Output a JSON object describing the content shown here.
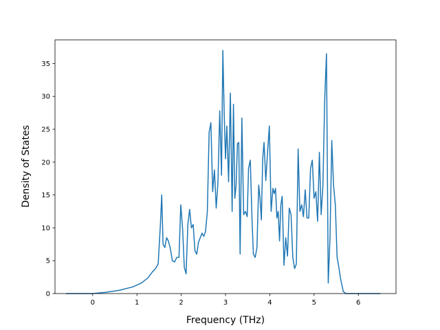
{
  "chart_data": {
    "type": "line",
    "title": "",
    "xlabel": "Frequency (THz)",
    "ylabel": "Density of States",
    "xlim": [
      -0.85,
      6.85
    ],
    "ylim": [
      0,
      38.6
    ],
    "xticks": [
      0,
      1,
      2,
      3,
      4,
      5,
      6
    ],
    "yticks": [
      0,
      5,
      10,
      15,
      20,
      25,
      30,
      35
    ],
    "grid": false,
    "legend": "none",
    "series": [
      {
        "color": "#1f77b4",
        "x": [
          -0.6,
          0.0,
          0.3,
          0.6,
          0.9,
          1.1,
          1.25,
          1.35,
          1.42,
          1.48,
          1.53,
          1.56,
          1.59,
          1.63,
          1.67,
          1.71,
          1.75,
          1.8,
          1.85,
          1.9,
          1.95,
          1.99,
          2.03,
          2.07,
          2.11,
          2.15,
          2.19,
          2.23,
          2.27,
          2.31,
          2.35,
          2.39,
          2.43,
          2.47,
          2.51,
          2.55,
          2.59,
          2.63,
          2.67,
          2.71,
          2.75,
          2.79,
          2.83,
          2.87,
          2.91,
          2.94,
          2.97,
          3.0,
          3.03,
          3.07,
          3.11,
          3.15,
          3.18,
          3.21,
          3.24,
          3.27,
          3.3,
          3.33,
          3.37,
          3.41,
          3.45,
          3.49,
          3.52,
          3.56,
          3.6,
          3.63,
          3.67,
          3.71,
          3.75,
          3.78,
          3.81,
          3.84,
          3.87,
          3.91,
          3.95,
          3.99,
          4.03,
          4.07,
          4.1,
          4.13,
          4.16,
          4.19,
          4.22,
          4.25,
          4.28,
          4.32,
          4.36,
          4.4,
          4.44,
          4.48,
          4.52,
          4.56,
          4.6,
          4.64,
          4.68,
          4.72,
          4.76,
          4.8,
          4.84,
          4.88,
          4.92,
          4.96,
          5.0,
          5.04,
          5.08,
          5.12,
          5.16,
          5.2,
          5.24,
          5.28,
          5.32,
          5.36,
          5.4,
          5.44,
          5.48,
          5.52,
          5.56,
          5.6,
          5.66,
          5.72,
          5.78,
          5.84,
          5.9,
          5.95,
          6.0,
          6.5
        ],
        "y": [
          0,
          0,
          0.2,
          0.5,
          1.0,
          1.6,
          2.4,
          3.3,
          3.8,
          4.5,
          10.5,
          15.0,
          7.5,
          7.0,
          8.5,
          8.0,
          7.0,
          5.0,
          4.8,
          5.5,
          5.5,
          13.5,
          10.0,
          4.0,
          3.0,
          10.5,
          12.8,
          10.0,
          10.5,
          6.5,
          6.0,
          7.8,
          8.5,
          9.2,
          8.7,
          9.5,
          12.5,
          24.5,
          26.0,
          15.5,
          18.8,
          13.0,
          17.0,
          27.8,
          18.0,
          37.0,
          27.5,
          20.5,
          25.5,
          17.0,
          30.5,
          12.5,
          28.8,
          14.5,
          16.5,
          22.8,
          23.0,
          6.0,
          26.7,
          12.0,
          12.5,
          11.7,
          19.0,
          20.3,
          11.0,
          6.0,
          5.5,
          7.0,
          16.5,
          14.5,
          11.2,
          20.5,
          23.0,
          17.2,
          21.5,
          25.5,
          12.5,
          16.0,
          15.2,
          16.0,
          11.5,
          12.5,
          8.0,
          13.5,
          14.8,
          4.3,
          8.5,
          5.7,
          13.0,
          12.0,
          5.5,
          3.8,
          4.5,
          22.0,
          12.5,
          13.5,
          11.7,
          15.8,
          11.5,
          11.5,
          19.0,
          20.3,
          14.5,
          15.5,
          11.0,
          21.5,
          12.0,
          16.5,
          29.5,
          36.5,
          1.6,
          8.5,
          23.3,
          16.5,
          13.5,
          5.5,
          4.0,
          2.2,
          0.3,
          0,
          0,
          0,
          0,
          0,
          0,
          0
        ]
      }
    ]
  }
}
